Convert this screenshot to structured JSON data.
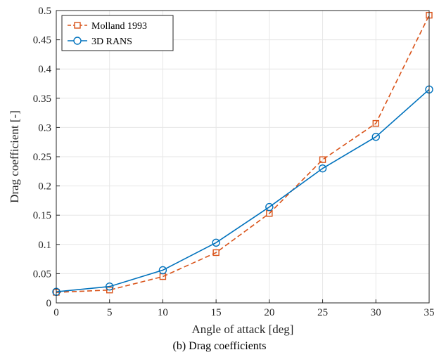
{
  "caption": "(b) Drag coefficients",
  "chart_data": {
    "type": "line",
    "xlabel": "Angle of attack [deg]",
    "ylabel": "Drag coefficient [-]",
    "xlim": [
      0,
      35
    ],
    "ylim": [
      0,
      0.5
    ],
    "xticks": [
      0,
      5,
      10,
      15,
      20,
      25,
      30,
      35
    ],
    "xtick_labels": [
      "0",
      "5",
      "10",
      "15",
      "20",
      "25",
      "30",
      "35"
    ],
    "yticks": [
      0,
      0.05,
      0.1,
      0.15,
      0.2,
      0.25,
      0.3,
      0.35,
      0.4,
      0.45,
      0.5
    ],
    "ytick_labels": [
      "0",
      "0.05",
      "0.1",
      "0.15",
      "0.2",
      "0.25",
      "0.3",
      "0.35",
      "0.4",
      "0.45",
      "0.5"
    ],
    "grid": true,
    "legend_position": "top-left",
    "x": [
      0,
      5,
      10,
      15,
      20,
      25,
      30,
      35
    ],
    "series": [
      {
        "name": "Molland 1993",
        "values": [
          0.018,
          0.022,
          0.045,
          0.086,
          0.153,
          0.245,
          0.307,
          0.492
        ],
        "color": "#D95319",
        "line_style": "dashed",
        "marker": "square"
      },
      {
        "name": "3D RANS",
        "values": [
          0.019,
          0.028,
          0.056,
          0.103,
          0.164,
          0.23,
          0.284,
          0.365
        ],
        "color": "#0072BD",
        "line_style": "solid",
        "marker": "circle"
      }
    ]
  }
}
